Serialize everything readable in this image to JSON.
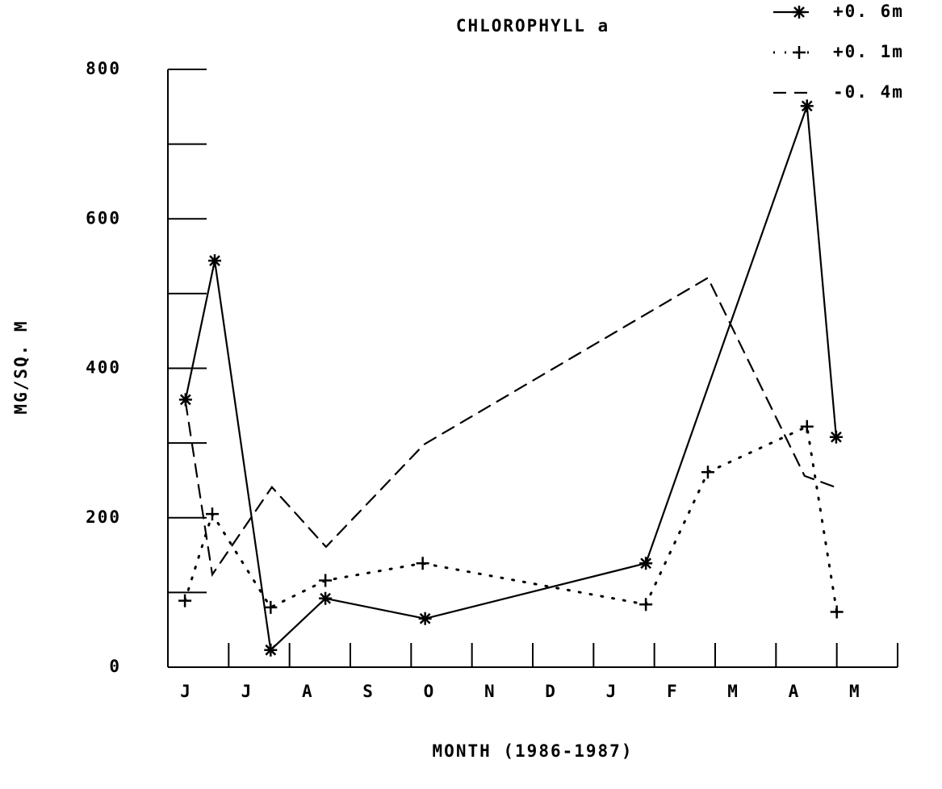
{
  "chart_data": {
    "type": "line",
    "title": "CHLOROPHYLL a",
    "x_label": "MONTH (1986-1987)",
    "y_label": "MG/SQ. M",
    "xlim": [
      0,
      12
    ],
    "xticks": [
      {
        "value": 0.3,
        "label": "J"
      },
      {
        "value": 1.3,
        "label": "J"
      },
      {
        "value": 2.3,
        "label": "A"
      },
      {
        "value": 3.3,
        "label": "S"
      },
      {
        "value": 4.3,
        "label": "O"
      },
      {
        "value": 5.3,
        "label": "N"
      },
      {
        "value": 6.3,
        "label": "D"
      },
      {
        "value": 7.3,
        "label": "J"
      },
      {
        "value": 8.3,
        "label": "F"
      },
      {
        "value": 9.3,
        "label": "M"
      },
      {
        "value": 10.3,
        "label": "A"
      },
      {
        "value": 11.3,
        "label": "M"
      }
    ],
    "xtick_marks": [
      1,
      2,
      3,
      4,
      5,
      6,
      7,
      8,
      9,
      10,
      11,
      12
    ],
    "ylim": [
      0,
      800
    ],
    "yticks": [
      0,
      200,
      400,
      600,
      800
    ],
    "yminor_ticks": [
      100,
      300,
      500,
      700
    ],
    "legend": "top-right",
    "series": [
      {
        "name": "+0. 6m",
        "color": "#000000",
        "linestyle": "solid",
        "marker": "asterisk",
        "x": [
          0.29,
          0.77,
          1.69,
          2.59,
          4.23,
          7.86,
          10.51,
          10.99
        ],
        "values": [
          358,
          544,
          23,
          92,
          65,
          139,
          751,
          308
        ]
      },
      {
        "name": "+0. 1m",
        "color": "#000000",
        "linestyle": "dotted",
        "marker": "plus",
        "x": [
          0.28,
          0.73,
          1.69,
          2.59,
          4.19,
          7.86,
          8.88,
          10.51,
          11.0
        ],
        "values": [
          89,
          205,
          80,
          116,
          139,
          84,
          261,
          322,
          74
        ]
      },
      {
        "name": "-0. 4m",
        "color": "#000000",
        "linestyle": "dashed",
        "marker": "none",
        "x": [
          0.29,
          0.73,
          1.71,
          2.6,
          4.21,
          8.88,
          10.47,
          11.04
        ],
        "values": [
          355,
          124,
          241,
          161,
          298,
          521,
          256,
          239
        ]
      }
    ]
  }
}
